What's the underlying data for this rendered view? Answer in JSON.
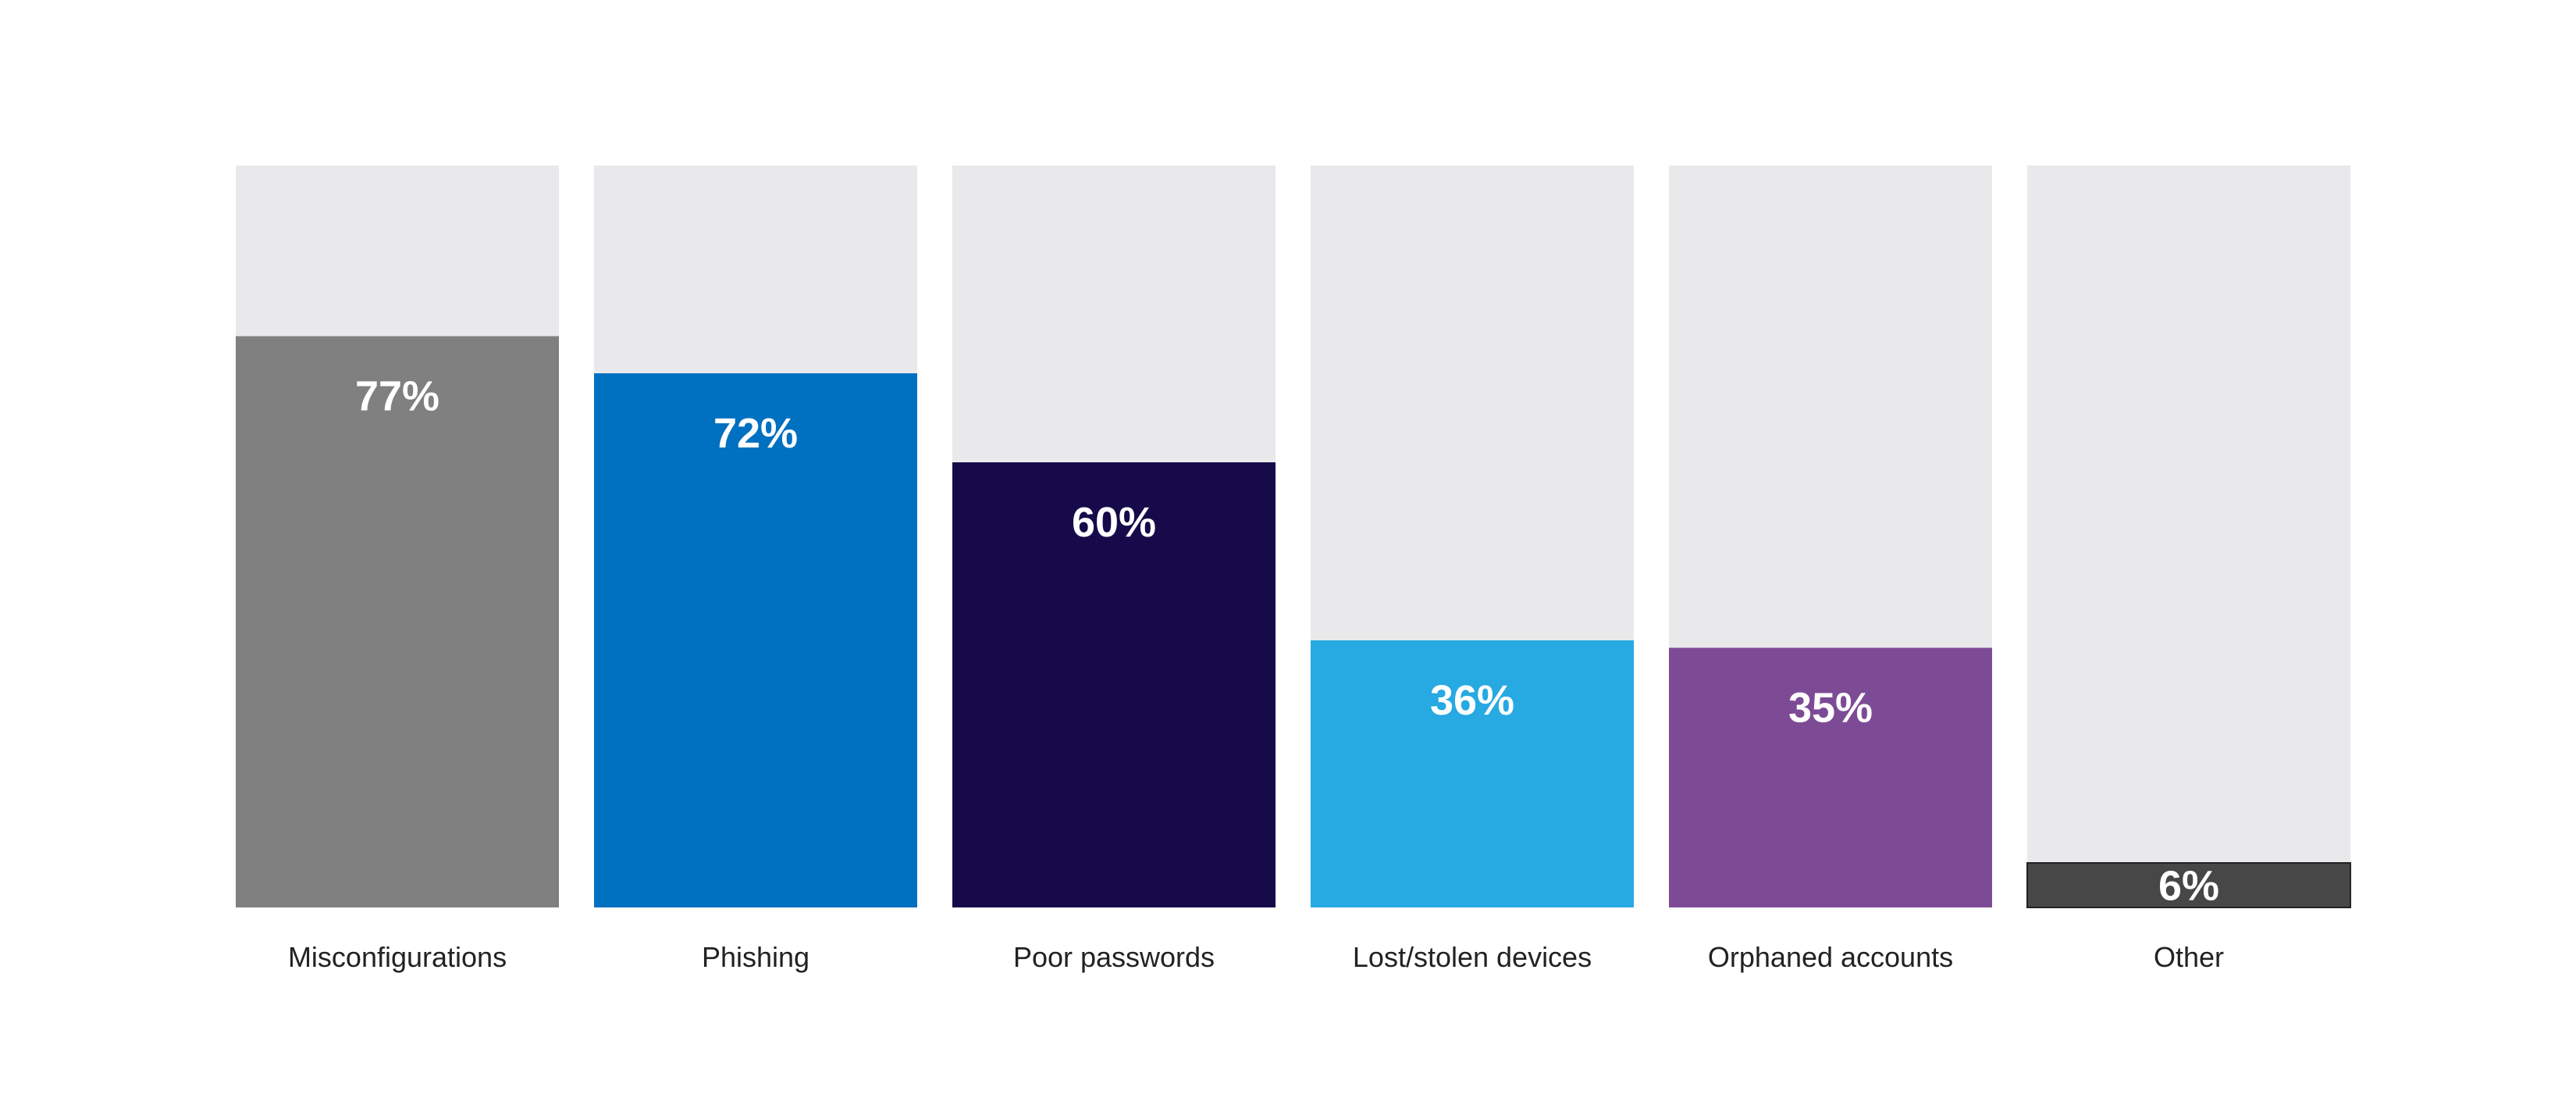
{
  "chart_data": {
    "type": "bar",
    "title": "",
    "xlabel": "",
    "ylabel": "",
    "ylim": [
      0,
      100
    ],
    "grid": false,
    "categories": [
      "Misconfigurations",
      "Phishing",
      "Poor passwords",
      "Lost/stolen devices",
      "Orphaned accounts",
      "Other"
    ],
    "values": [
      77,
      72,
      60,
      36,
      35,
      6
    ],
    "value_labels": [
      "77%",
      "72%",
      "60%",
      "36%",
      "35%",
      "6%"
    ],
    "colors": [
      "#808080",
      "#0070c0",
      "#170a4a",
      "#27a9e1",
      "#7d4b96",
      "#474747"
    ],
    "track_color": "#e9e9eb"
  }
}
